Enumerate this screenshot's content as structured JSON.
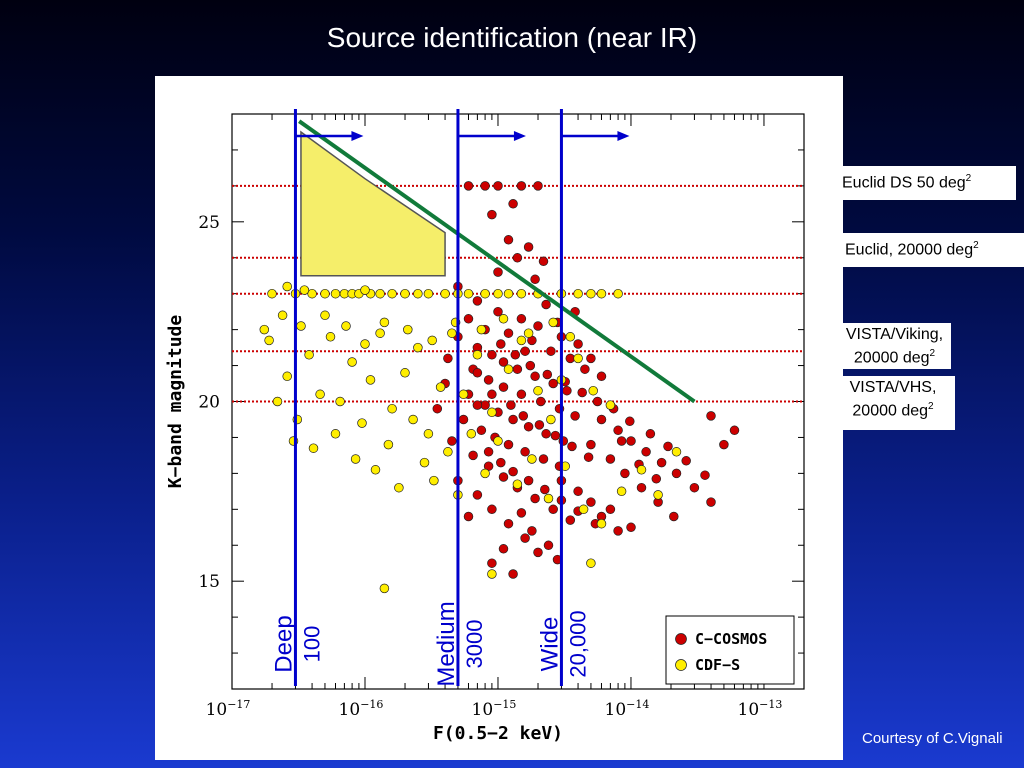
{
  "slide": {
    "title": "Source identification (near IR)",
    "credit": "Courtesy of C.Vignali"
  },
  "annotations": {
    "euclid_ds": {
      "text": "Euclid DS 50 deg",
      "sup": "2"
    },
    "euclid_wide": {
      "text": "Euclid, 20000 deg",
      "sup": "2"
    },
    "vista_viking": {
      "line1": "VISTA/Viking,",
      "line2": "20000 deg",
      "sup": "2"
    },
    "vista_vhs": {
      "line1": "VISTA/VHS,",
      "line2": "20000 deg",
      "sup": "2"
    }
  },
  "colors": {
    "c_cosmos": "#cc0000",
    "cdf_s": "#ffee00",
    "survey_lines": "#0000cc",
    "depth_lines": "#cc0000",
    "diagonal": "#117a3a",
    "region_fill": "#f5ee6a"
  },
  "chart_data": {
    "type": "scatter",
    "xlabel": "F(0.5−2 keV)",
    "ylabel": "K−band magnitude",
    "xscale": "log",
    "xlim": [
      1e-17,
      2e-13
    ],
    "ylim": [
      12.0,
      28.0
    ],
    "x_ticks": [
      {
        "value": 1e-17,
        "base": "10",
        "exp": "−17"
      },
      {
        "value": 1e-16,
        "base": "10",
        "exp": "−16"
      },
      {
        "value": 1e-15,
        "base": "10",
        "exp": "−15"
      },
      {
        "value": 1e-14,
        "base": "10",
        "exp": "−14"
      },
      {
        "value": 1e-13,
        "base": "10",
        "exp": "−13"
      }
    ],
    "y_ticks": [
      15,
      20,
      25
    ],
    "legend": [
      {
        "name": "C−COSMOS",
        "color": "#cc0000"
      },
      {
        "name": "CDF−S",
        "color": "#ffee00"
      }
    ],
    "depth_lines_K": [
      26.0,
      24.0,
      23.0,
      21.4,
      20.0
    ],
    "survey_limits": [
      {
        "label": "Deep",
        "area": "100",
        "x": 3e-17
      },
      {
        "label": "Medium",
        "area": "3000",
        "x": 5e-16
      },
      {
        "label": "Wide",
        "area": "20,000",
        "x": 3e-15
      }
    ],
    "diagonal_line": {
      "x": [
        3.2e-17,
        3e-14
      ],
      "y": [
        27.8,
        20.0
      ]
    },
    "shaded_region": {
      "x": [
        3.3e-17,
        3.3e-17,
        1e-16,
        4e-16,
        4e-16
      ],
      "y": [
        23.5,
        27.5,
        26.2,
        24.7,
        23.5
      ]
    },
    "series": [
      {
        "name": "C−COSMOS",
        "points": [
          [
            1.2e-15,
            24.5
          ],
          [
            8e-16,
            26
          ],
          [
            1e-15,
            26
          ],
          [
            1.5e-15,
            26
          ],
          [
            6e-16,
            26
          ],
          [
            2e-15,
            26
          ],
          [
            1.3e-15,
            25.5
          ],
          [
            9e-16,
            25.2
          ],
          [
            5e-16,
            23.2
          ],
          [
            7e-16,
            22.8
          ],
          [
            1e-15,
            22.5
          ],
          [
            1.5e-15,
            22.3
          ],
          [
            2e-15,
            22.1
          ],
          [
            3e-15,
            21.8
          ],
          [
            4e-15,
            21.6
          ],
          [
            5e-15,
            21.2
          ],
          [
            6e-16,
            22.3
          ],
          [
            8e-16,
            22
          ],
          [
            1.2e-15,
            21.9
          ],
          [
            1.8e-15,
            21.7
          ],
          [
            2.5e-15,
            21.4
          ],
          [
            3.5e-15,
            21.2
          ],
          [
            4.5e-15,
            20.9
          ],
          [
            6e-15,
            20.7
          ],
          [
            5e-16,
            21.8
          ],
          [
            7e-16,
            21.5
          ],
          [
            9e-16,
            21.3
          ],
          [
            1.1e-15,
            21.1
          ],
          [
            1.4e-15,
            20.9
          ],
          [
            1.9e-15,
            20.7
          ],
          [
            2.6e-15,
            20.5
          ],
          [
            3.3e-15,
            20.3
          ],
          [
            4.2e-16,
            21.2
          ],
          [
            6.5e-16,
            20.9
          ],
          [
            8.5e-16,
            20.6
          ],
          [
            1.1e-15,
            20.4
          ],
          [
            1.5e-15,
            20.2
          ],
          [
            2.1e-15,
            20
          ],
          [
            2.9e-15,
            19.8
          ],
          [
            3.8e-15,
            19.6
          ],
          [
            4e-16,
            20.5
          ],
          [
            6e-16,
            20.2
          ],
          [
            8e-16,
            19.9
          ],
          [
            1e-15,
            19.7
          ],
          [
            1.3e-15,
            19.5
          ],
          [
            1.7e-15,
            19.3
          ],
          [
            2.3e-15,
            19.1
          ],
          [
            3.1e-15,
            18.9
          ],
          [
            3.5e-16,
            19.8
          ],
          [
            5.5e-16,
            19.5
          ],
          [
            7.5e-16,
            19.2
          ],
          [
            9.5e-16,
            19
          ],
          [
            1.2e-15,
            18.8
          ],
          [
            1.6e-15,
            18.6
          ],
          [
            2.2e-15,
            18.4
          ],
          [
            2.9e-15,
            18.2
          ],
          [
            4.5e-16,
            18.9
          ],
          [
            6.5e-16,
            18.5
          ],
          [
            8.5e-16,
            18.2
          ],
          [
            1.1e-15,
            17.9
          ],
          [
            1.4e-15,
            17.6
          ],
          [
            1.9e-15,
            17.3
          ],
          [
            2.6e-15,
            17
          ],
          [
            3.5e-15,
            16.7
          ],
          [
            5e-16,
            17.8
          ],
          [
            7e-16,
            17.4
          ],
          [
            9e-16,
            17
          ],
          [
            1.2e-15,
            16.6
          ],
          [
            1.6e-15,
            16.2
          ],
          [
            2e-15,
            15.8
          ],
          [
            9e-16,
            15.5
          ],
          [
            1.1e-15,
            15.9
          ],
          [
            6e-15,
            19.5
          ],
          [
            8e-15,
            19.2
          ],
          [
            1e-14,
            18.9
          ],
          [
            1.3e-14,
            18.6
          ],
          [
            1.7e-14,
            18.3
          ],
          [
            2.2e-14,
            18
          ],
          [
            3e-14,
            17.6
          ],
          [
            4e-14,
            17.2
          ],
          [
            5e-15,
            18.8
          ],
          [
            7e-15,
            18.4
          ],
          [
            9e-15,
            18
          ],
          [
            1.2e-14,
            17.6
          ],
          [
            1.6e-14,
            17.2
          ],
          [
            2.1e-14,
            16.8
          ],
          [
            1e-14,
            16.5
          ],
          [
            7e-15,
            17
          ],
          [
            3e-15,
            17.8
          ],
          [
            4e-15,
            17.5
          ],
          [
            5e-15,
            17.2
          ],
          [
            6e-15,
            16.8
          ],
          [
            8e-15,
            16.4
          ],
          [
            5e-14,
            18.8
          ],
          [
            6e-14,
            19.2
          ],
          [
            4e-14,
            19.6
          ],
          [
            1.5e-15,
            16.9
          ],
          [
            1.8e-15,
            16.4
          ],
          [
            2.4e-15,
            16
          ],
          [
            2.8e-15,
            15.6
          ],
          [
            6e-16,
            16.8
          ],
          [
            1.3e-15,
            15.2
          ],
          [
            7e-16,
            19.9
          ],
          [
            1.6e-15,
            21.4
          ],
          [
            2.3e-15,
            22.7
          ],
          [
            1.9e-15,
            23.4
          ],
          [
            2.8e-15,
            22.2
          ],
          [
            3.8e-15,
            22.5
          ],
          [
            1e-15,
            23.6
          ],
          [
            1.4e-15,
            24
          ],
          [
            2.2e-15,
            23.9
          ],
          [
            1.7e-15,
            24.3
          ],
          [
            7e-16,
            20.8
          ],
          [
            9e-16,
            20.2
          ],
          [
            1.25e-15,
            19.9
          ],
          [
            1.55e-15,
            19.6
          ],
          [
            2.05e-15,
            19.35
          ],
          [
            2.7e-15,
            19.05
          ],
          [
            3.6e-15,
            18.75
          ],
          [
            4.8e-15,
            18.45
          ],
          [
            1.05e-15,
            21.6
          ],
          [
            1.35e-15,
            21.3
          ],
          [
            1.75e-15,
            21
          ],
          [
            2.35e-15,
            20.75
          ],
          [
            3.2e-15,
            20.55
          ],
          [
            4.3e-15,
            20.25
          ],
          [
            5.6e-15,
            20
          ],
          [
            7.4e-15,
            19.8
          ],
          [
            9.8e-15,
            19.45
          ],
          [
            1.4e-14,
            19.1
          ],
          [
            1.9e-14,
            18.75
          ],
          [
            2.6e-14,
            18.35
          ],
          [
            3.6e-14,
            17.95
          ],
          [
            8.5e-15,
            18.9
          ],
          [
            1.15e-14,
            18.25
          ],
          [
            1.55e-14,
            17.85
          ],
          [
            8.5e-16,
            18.6
          ],
          [
            1.05e-15,
            18.3
          ],
          [
            1.3e-15,
            18.05
          ],
          [
            1.7e-15,
            17.8
          ],
          [
            2.25e-15,
            17.55
          ],
          [
            3e-15,
            17.25
          ],
          [
            4e-15,
            16.95
          ],
          [
            5.4e-15,
            16.6
          ]
        ]
      },
      {
        "name": "CDF−S",
        "points": [
          [
            2e-17,
            23
          ],
          [
            3e-17,
            23
          ],
          [
            4e-17,
            23
          ],
          [
            5e-17,
            23
          ],
          [
            6e-17,
            23
          ],
          [
            7e-17,
            23
          ],
          [
            8e-17,
            23
          ],
          [
            9e-17,
            23
          ],
          [
            1.1e-16,
            23
          ],
          [
            1.3e-16,
            23
          ],
          [
            1.6e-16,
            23
          ],
          [
            2e-16,
            23
          ],
          [
            2.5e-16,
            23
          ],
          [
            3e-16,
            23
          ],
          [
            4e-16,
            23
          ],
          [
            5e-16,
            23
          ],
          [
            6e-16,
            23
          ],
          [
            8e-16,
            23
          ],
          [
            1e-15,
            23
          ],
          [
            1.2e-15,
            23
          ],
          [
            1.5e-15,
            23
          ],
          [
            2e-15,
            23
          ],
          [
            3e-15,
            23
          ],
          [
            4e-15,
            23
          ],
          [
            5e-15,
            23
          ],
          [
            6e-15,
            23
          ],
          [
            8e-15,
            23
          ],
          [
            2.6e-17,
            23.2
          ],
          [
            3.5e-17,
            23.1
          ],
          [
            1e-16,
            23.1
          ],
          [
            1.9e-17,
            21.7
          ],
          [
            2.6e-17,
            20.7
          ],
          [
            3.1e-17,
            19.5
          ],
          [
            3.8e-17,
            21.3
          ],
          [
            4.6e-17,
            20.2
          ],
          [
            5.5e-17,
            21.8
          ],
          [
            6.5e-17,
            20
          ],
          [
            8e-17,
            21.1
          ],
          [
            9.5e-17,
            19.4
          ],
          [
            1.1e-16,
            20.6
          ],
          [
            1.3e-16,
            21.9
          ],
          [
            1.6e-16,
            19.8
          ],
          [
            2e-16,
            20.8
          ],
          [
            2.5e-16,
            21.5
          ],
          [
            3e-16,
            19.1
          ],
          [
            3.7e-16,
            20.4
          ],
          [
            4.5e-16,
            21.9
          ],
          [
            5.5e-16,
            20.2
          ],
          [
            7e-16,
            21.3
          ],
          [
            9e-16,
            19.7
          ],
          [
            1.2e-15,
            20.9
          ],
          [
            1.5e-15,
            21.7
          ],
          [
            2e-15,
            20.3
          ],
          [
            2.5e-15,
            19.5
          ],
          [
            3e-15,
            20.6
          ],
          [
            4e-15,
            21.2
          ],
          [
            5.2e-15,
            20.3
          ],
          [
            7e-15,
            19.9
          ],
          [
            2.9e-17,
            18.9
          ],
          [
            4.1e-17,
            18.7
          ],
          [
            6e-17,
            19.1
          ],
          [
            8.5e-17,
            18.4
          ],
          [
            1.2e-16,
            18.1
          ],
          [
            1.5e-16,
            18.8
          ],
          [
            1.8e-16,
            17.6
          ],
          [
            2.3e-16,
            19.5
          ],
          [
            2.8e-16,
            18.3
          ],
          [
            3.3e-16,
            17.8
          ],
          [
            4.2e-16,
            18.6
          ],
          [
            5e-16,
            17.4
          ],
          [
            6.3e-16,
            19.1
          ],
          [
            8e-16,
            18
          ],
          [
            1e-15,
            18.9
          ],
          [
            1.4e-15,
            17.7
          ],
          [
            1.8e-15,
            18.4
          ],
          [
            2.4e-15,
            17.3
          ],
          [
            3.2e-15,
            18.2
          ],
          [
            4.4e-15,
            17
          ],
          [
            6e-15,
            16.6
          ],
          [
            8.5e-15,
            17.5
          ],
          [
            1.2e-14,
            18.1
          ],
          [
            1.6e-14,
            17.4
          ],
          [
            2.2e-14,
            18.6
          ],
          [
            5e-15,
            15.5
          ],
          [
            1.4e-16,
            14.8
          ],
          [
            9e-16,
            15.2
          ],
          [
            2.4e-17,
            22.4
          ],
          [
            3.3e-17,
            22.1
          ],
          [
            5e-17,
            22.4
          ],
          [
            7.2e-17,
            22.1
          ],
          [
            1e-16,
            21.6
          ],
          [
            1.4e-16,
            22.2
          ],
          [
            2.1e-16,
            22
          ],
          [
            3.2e-16,
            21.7
          ],
          [
            4.8e-16,
            22.2
          ],
          [
            7.5e-16,
            22
          ],
          [
            1.1e-15,
            22.3
          ],
          [
            1.7e-15,
            21.9
          ],
          [
            2.6e-15,
            22.2
          ],
          [
            3.5e-15,
            21.8
          ],
          [
            1.75e-17,
            22
          ],
          [
            2.2e-17,
            20
          ]
        ]
      }
    ]
  }
}
